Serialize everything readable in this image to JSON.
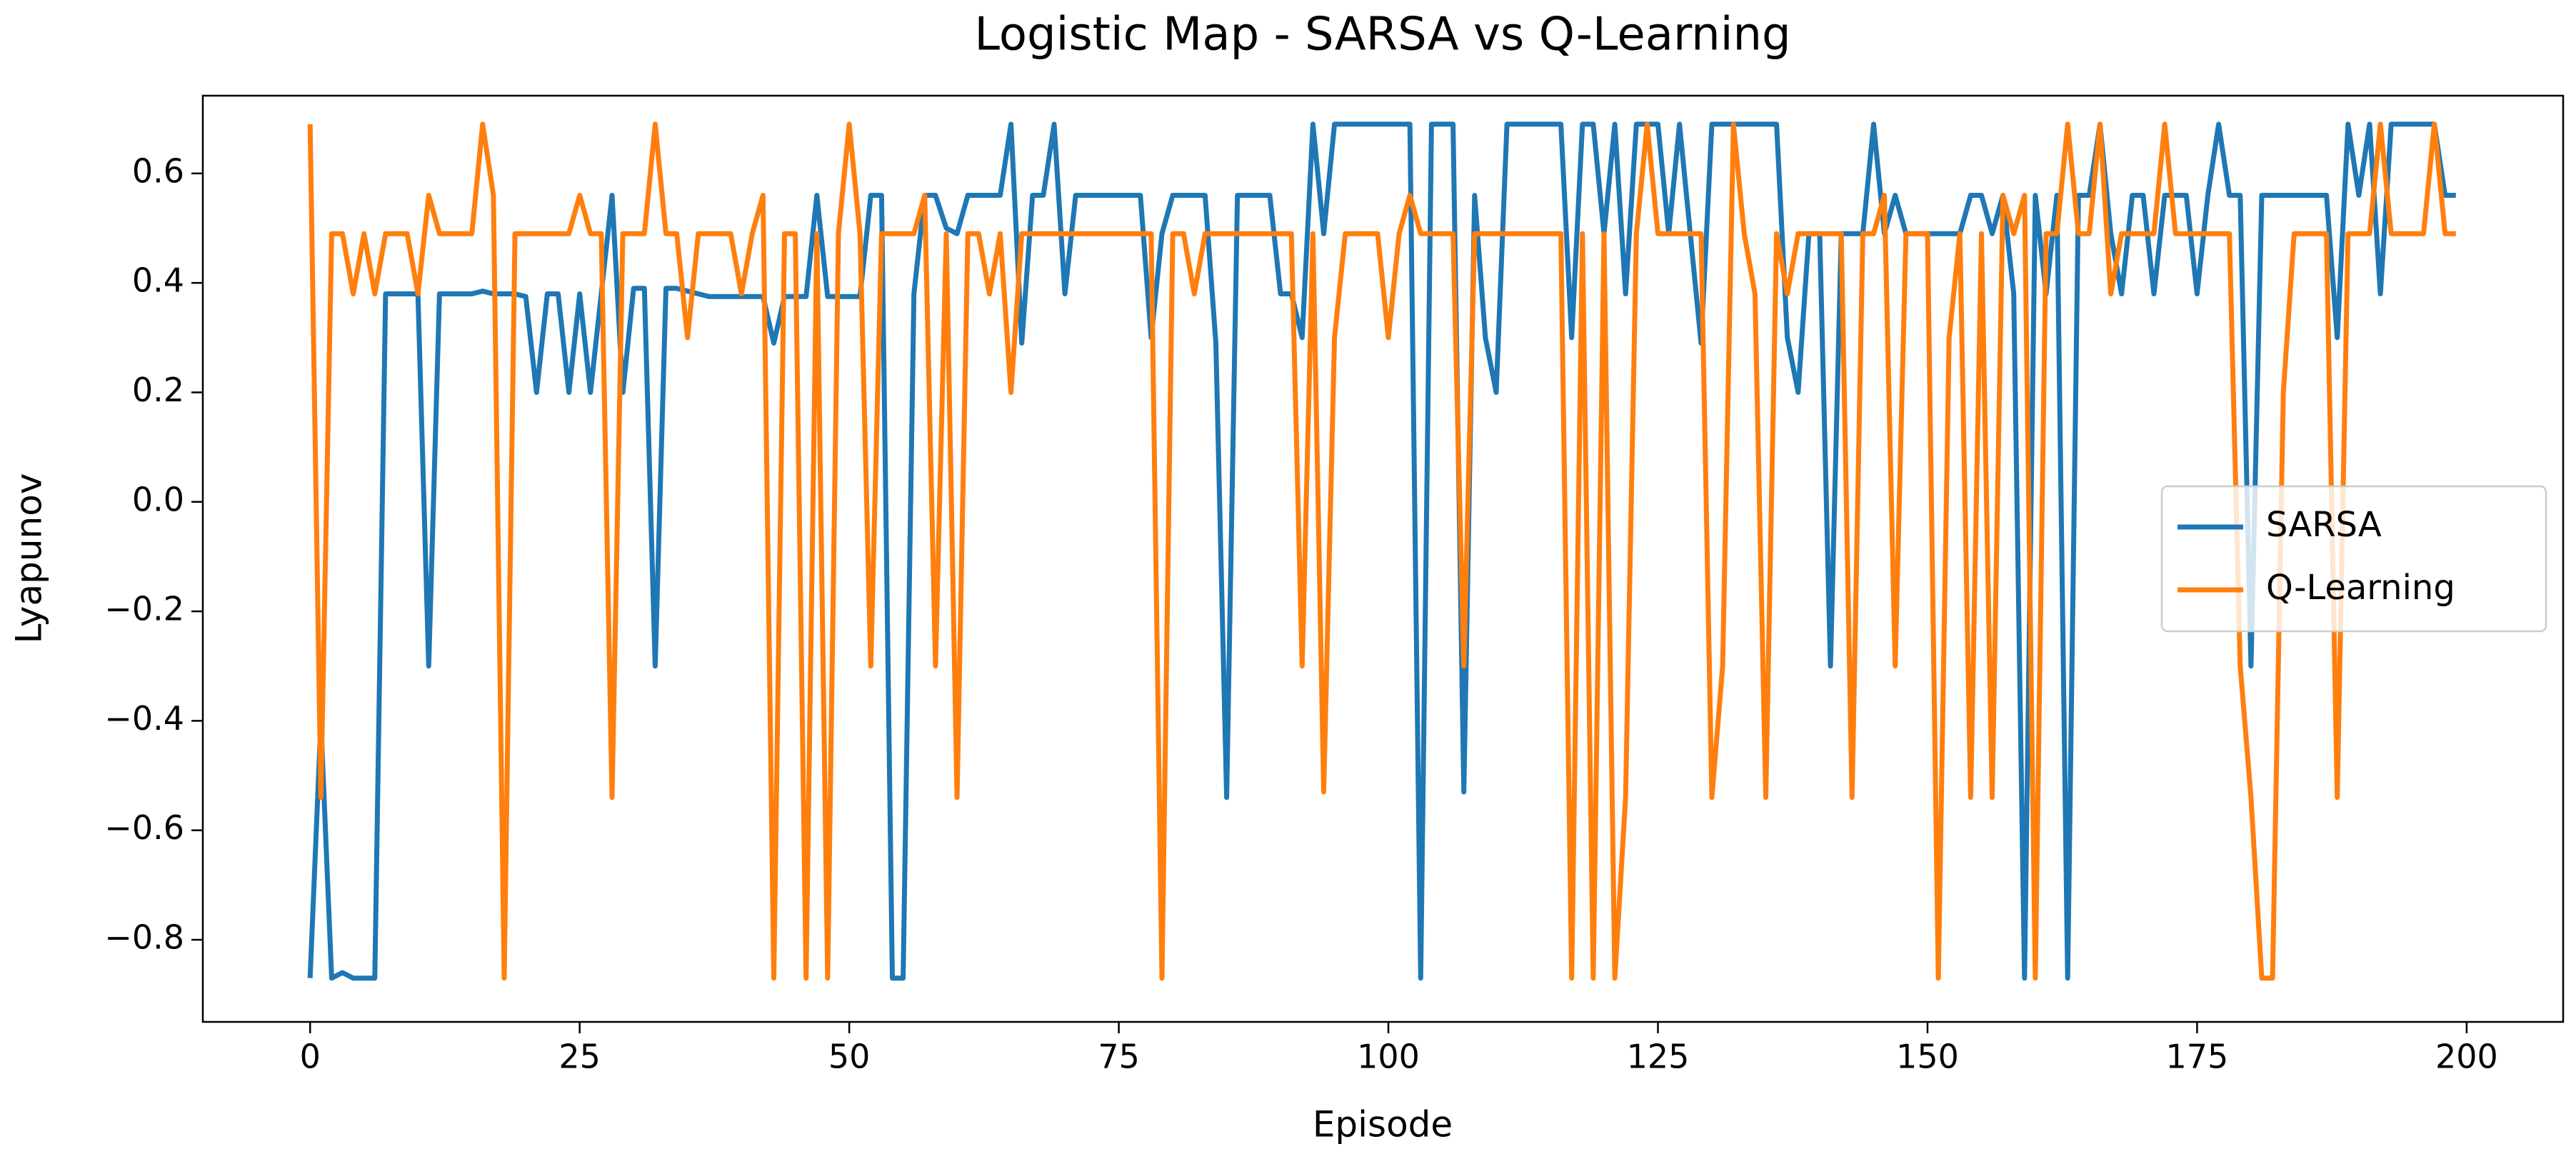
{
  "chart_data": {
    "type": "line",
    "title": "Logistic Map - SARSA vs Q-Learning",
    "xlabel": "Episode",
    "ylabel": "Lyapunov",
    "xlim": [
      -9.95,
      208.95
    ],
    "ylim": [
      -0.95,
      0.742
    ],
    "xticks": [
      0,
      25,
      50,
      75,
      100,
      125,
      150,
      175,
      200
    ],
    "yticks": [
      {
        "value": -0.8,
        "label": "−0.8"
      },
      {
        "value": -0.6,
        "label": "−0.6"
      },
      {
        "value": -0.4,
        "label": "−0.4"
      },
      {
        "value": -0.2,
        "label": "−0.2"
      },
      {
        "value": 0,
        "label": "0.0"
      },
      0.2,
      0.4,
      0.6
    ],
    "legend": "center right",
    "grid": false,
    "x": [
      0,
      1,
      2,
      3,
      4,
      5,
      6,
      7,
      8,
      9,
      10,
      11,
      12,
      13,
      14,
      15,
      16,
      17,
      18,
      19,
      20,
      21,
      22,
      23,
      24,
      25,
      26,
      27,
      28,
      29,
      30,
      31,
      32,
      33,
      34,
      35,
      36,
      37,
      38,
      39,
      40,
      41,
      42,
      43,
      44,
      45,
      46,
      47,
      48,
      49,
      50,
      51,
      52,
      53,
      54,
      55,
      56,
      57,
      58,
      59,
      60,
      61,
      62,
      63,
      64,
      65,
      66,
      67,
      68,
      69,
      70,
      71,
      72,
      73,
      74,
      75,
      76,
      77,
      78,
      79,
      80,
      81,
      82,
      83,
      84,
      85,
      86,
      87,
      88,
      89,
      90,
      91,
      92,
      93,
      94,
      95,
      96,
      97,
      98,
      99,
      100,
      101,
      102,
      103,
      104,
      105,
      106,
      107,
      108,
      109,
      110,
      111,
      112,
      113,
      114,
      115,
      116,
      117,
      118,
      119,
      120,
      121,
      122,
      123,
      124,
      125,
      126,
      127,
      128,
      129,
      130,
      131,
      132,
      133,
      134,
      135,
      136,
      137,
      138,
      139,
      140,
      141,
      142,
      143,
      144,
      145,
      146,
      147,
      148,
      149,
      150,
      151,
      152,
      153,
      154,
      155,
      156,
      157,
      158,
      159,
      160,
      161,
      162,
      163,
      164,
      165,
      166,
      167,
      168,
      169,
      170,
      171,
      172,
      173,
      174,
      175,
      176,
      177,
      178,
      179,
      180,
      181,
      182,
      183,
      184,
      185,
      186,
      187,
      188,
      189,
      190,
      191,
      192,
      193,
      194,
      195,
      196,
      197,
      198,
      199
    ],
    "series": [
      {
        "name": "SARSA",
        "color": "#1f77b4",
        "values": [
          -0.87,
          -0.4,
          -0.87,
          -0.86,
          -0.87,
          -0.87,
          -0.87,
          0.38,
          0.38,
          0.38,
          0.38,
          -0.3,
          0.38,
          0.38,
          0.38,
          0.38,
          0.385,
          0.38,
          0.38,
          0.38,
          0.375,
          0.2,
          0.38,
          0.38,
          0.2,
          0.38,
          0.2,
          0.38,
          0.56,
          0.2,
          0.39,
          0.39,
          -0.3,
          0.39,
          0.39,
          0.385,
          0.38,
          0.375,
          0.375,
          0.375,
          0.375,
          0.375,
          0.375,
          0.29,
          0.375,
          0.375,
          0.375,
          0.56,
          0.375,
          0.375,
          0.375,
          0.375,
          0.56,
          0.56,
          -0.87,
          -0.87,
          0.38,
          0.56,
          0.56,
          0.5,
          0.49,
          0.56,
          0.56,
          0.56,
          0.56,
          0.69,
          0.29,
          0.56,
          0.56,
          0.69,
          0.38,
          0.56,
          0.56,
          0.56,
          0.56,
          0.56,
          0.56,
          0.56,
          0.3,
          0.49,
          0.56,
          0.56,
          0.56,
          0.56,
          0.29,
          -0.54,
          0.56,
          0.56,
          0.56,
          0.56,
          0.38,
          0.38,
          0.3,
          0.69,
          0.49,
          0.69,
          0.69,
          0.69,
          0.69,
          0.69,
          0.69,
          0.69,
          0.69,
          -0.87,
          0.69,
          0.69,
          0.69,
          -0.53,
          0.56,
          0.3,
          0.2,
          0.69,
          0.69,
          0.69,
          0.69,
          0.69,
          0.69,
          0.3,
          0.69,
          0.69,
          0.49,
          0.69,
          0.38,
          0.69,
          0.69,
          0.69,
          0.49,
          0.69,
          0.49,
          0.29,
          0.69,
          0.69,
          0.69,
          0.69,
          0.69,
          0.69,
          0.69,
          0.3,
          0.2,
          0.49,
          0.49,
          -0.3,
          0.49,
          0.49,
          0.49,
          0.69,
          0.49,
          0.56,
          0.49,
          0.49,
          0.49,
          0.49,
          0.49,
          0.49,
          0.56,
          0.56,
          0.49,
          0.56,
          0.38,
          -0.87,
          0.56,
          0.38,
          0.56,
          -0.87,
          0.56,
          0.56,
          0.69,
          0.49,
          0.38,
          0.56,
          0.56,
          0.38,
          0.56,
          0.56,
          0.56,
          0.38,
          0.56,
          0.69,
          0.56,
          0.56,
          -0.3,
          0.56,
          0.56,
          0.56,
          0.56,
          0.56,
          0.56,
          0.56,
          0.3,
          0.69,
          0.56,
          0.69,
          0.38,
          0.69,
          0.69,
          0.69,
          0.69,
          0.69,
          0.56,
          0.56
        ]
      },
      {
        "name": "Q-Learning",
        "color": "#ff7f0e",
        "values": [
          0.69,
          -0.54,
          0.49,
          0.49,
          0.38,
          0.49,
          0.38,
          0.49,
          0.49,
          0.49,
          0.38,
          0.56,
          0.49,
          0.49,
          0.49,
          0.49,
          0.69,
          0.56,
          -0.87,
          0.49,
          0.49,
          0.49,
          0.49,
          0.49,
          0.49,
          0.56,
          0.49,
          0.49,
          -0.54,
          0.49,
          0.49,
          0.49,
          0.69,
          0.49,
          0.49,
          0.3,
          0.49,
          0.49,
          0.49,
          0.49,
          0.38,
          0.49,
          0.56,
          -0.87,
          0.49,
          0.49,
          -0.87,
          0.49,
          -0.87,
          0.49,
          0.69,
          0.49,
          -0.3,
          0.49,
          0.49,
          0.49,
          0.49,
          0.56,
          -0.3,
          0.49,
          -0.54,
          0.49,
          0.49,
          0.38,
          0.49,
          0.2,
          0.49,
          0.49,
          0.49,
          0.49,
          0.49,
          0.49,
          0.49,
          0.49,
          0.49,
          0.49,
          0.49,
          0.49,
          0.49,
          -0.87,
          0.49,
          0.49,
          0.38,
          0.49,
          0.49,
          0.49,
          0.49,
          0.49,
          0.49,
          0.49,
          0.49,
          0.49,
          -0.3,
          0.49,
          -0.53,
          0.3,
          0.49,
          0.49,
          0.49,
          0.49,
          0.3,
          0.49,
          0.56,
          0.49,
          0.49,
          0.49,
          0.49,
          -0.3,
          0.49,
          0.49,
          0.49,
          0.49,
          0.49,
          0.49,
          0.49,
          0.49,
          0.49,
          -0.87,
          0.49,
          -0.87,
          0.49,
          -0.87,
          -0.54,
          0.49,
          0.69,
          0.49,
          0.49,
          0.49,
          0.49,
          0.49,
          -0.54,
          -0.3,
          0.69,
          0.49,
          0.38,
          -0.54,
          0.49,
          0.38,
          0.49,
          0.49,
          0.49,
          0.49,
          0.49,
          -0.54,
          0.49,
          0.49,
          0.56,
          -0.3,
          0.49,
          0.49,
          0.49,
          -0.87,
          0.3,
          0.49,
          -0.54,
          0.49,
          -0.54,
          0.56,
          0.49,
          0.56,
          -0.87,
          0.49,
          0.49,
          0.69,
          0.49,
          0.49,
          0.69,
          0.38,
          0.49,
          0.49,
          0.49,
          0.49,
          0.69,
          0.49,
          0.49,
          0.49,
          0.49,
          0.49,
          0.49,
          -0.3,
          -0.54,
          -0.87,
          -0.87,
          0.2,
          0.49,
          0.49,
          0.49,
          0.49,
          -0.54,
          0.49,
          0.49,
          0.49,
          0.69,
          0.49,
          0.49,
          0.49,
          0.49,
          0.69,
          0.49,
          0.49
        ]
      }
    ]
  }
}
